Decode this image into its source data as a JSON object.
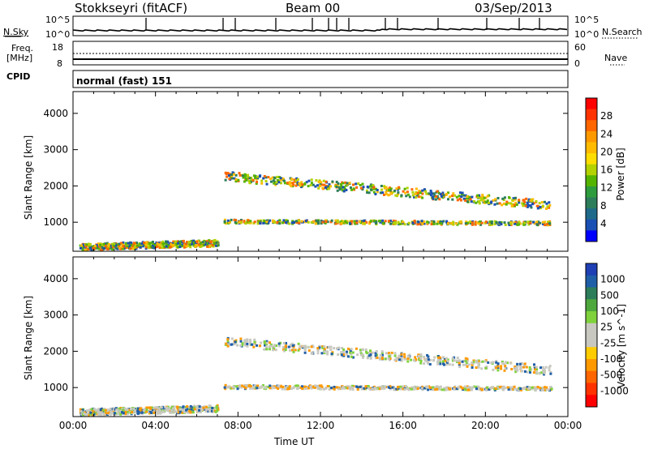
{
  "header": {
    "station": "Stokkseyri (fitACF)",
    "beam": "Beam 00",
    "date": "03/Sep/2013"
  },
  "top_panels": {
    "nsky_label": "N.Sky",
    "nsearch_label": "N.Search",
    "nsky_ticks": [
      "10^5",
      "10^0"
    ],
    "nsearch_ticks": [
      "10^5",
      "10^0"
    ],
    "freq_label_1": "Freq.",
    "freq_label_2": "[MHz]",
    "freq_ticks": [
      "18",
      "8"
    ],
    "nave_label": "Nave",
    "nave_ticks": [
      "60",
      "0"
    ],
    "cpid_label": "CPID",
    "cpid_value": "normal (fast) 151"
  },
  "chart_data": [
    {
      "type": "heatmap",
      "name": "power",
      "ylabel": "Slant Range [km]",
      "colorbar_label": "Power [dB]",
      "colorbar_ticks": [
        "28",
        "24",
        "20",
        "16",
        "12",
        "8",
        "4"
      ],
      "colorbar_colors": [
        "#ff0000",
        "#ff3300",
        "#ff6600",
        "#ff9900",
        "#ffbb00",
        "#ffdd00",
        "#b4d200",
        "#55b400",
        "#2e9c3c",
        "#2e7d5a",
        "#1f6a8a",
        "#1a4fb4",
        "#0000ff"
      ],
      "yticks": [
        1000,
        2000,
        3000,
        4000
      ],
      "ylim": [
        200,
        4600
      ],
      "xlim": [
        0,
        24
      ]
    },
    {
      "type": "heatmap",
      "name": "velocity",
      "ylabel": "Slant Range [km]",
      "xlabel": "Time UT",
      "colorbar_label": "Velocity [m s^-1]",
      "colorbar_ticks": [
        "1000",
        "500",
        "100",
        "25",
        "-25",
        "-100",
        "-500",
        "-1000"
      ],
      "colorbar_colors": [
        "#1f3fb4",
        "#1f5fa8",
        "#2e7d5a",
        "#4fa83c",
        "#7fd23c",
        "#c8c8c0",
        "#c8c8c0",
        "#ffcc00",
        "#ff9900",
        "#ff6600",
        "#ff3300",
        "#ff0000"
      ],
      "xticks": [
        "00:00",
        "04:00",
        "08:00",
        "12:00",
        "16:00",
        "20:00",
        "00:00"
      ],
      "yticks": [
        1000,
        2000,
        3000,
        4000
      ],
      "ylim": [
        200,
        4600
      ],
      "xlim": [
        0,
        24
      ]
    }
  ]
}
